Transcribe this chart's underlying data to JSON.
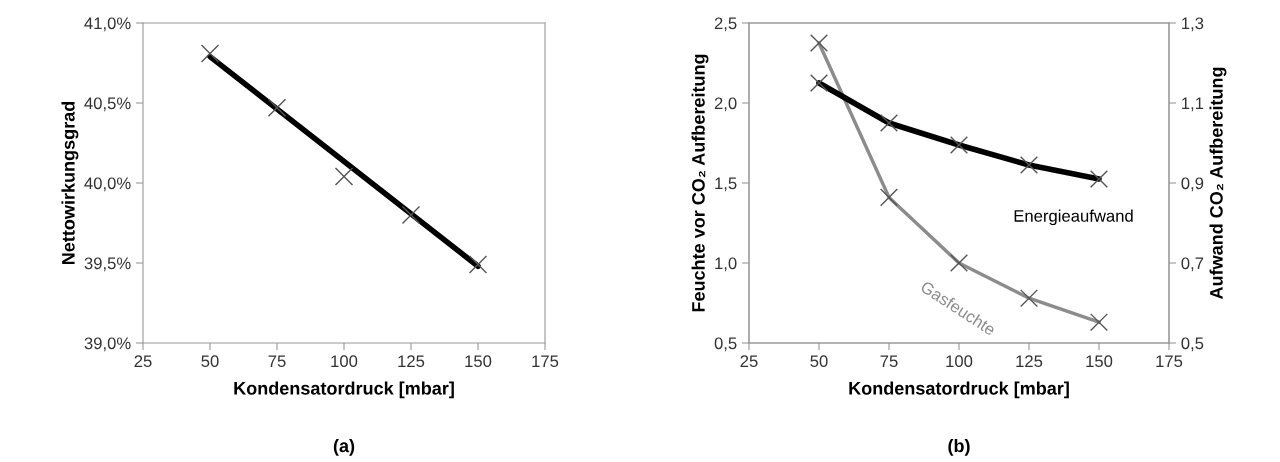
{
  "chart_data": [
    {
      "type": "scatter",
      "xlabel": "Kondensatordruck [mbar]",
      "ylabel": "Nettowirkungsgrad",
      "annotations": [
        "(a)"
      ],
      "x": [
        50,
        75,
        100,
        125,
        150
      ],
      "series": [
        {
          "type": "scatter",
          "color": "#555555",
          "marker": "cross",
          "values": [
            40.81,
            40.47,
            40.04,
            39.8,
            39.49
          ]
        },
        {
          "type": "line",
          "color": "#000000",
          "marker": "none",
          "x": [
            50,
            150
          ],
          "values": [
            40.79,
            39.48
          ]
        }
      ],
      "xlim": [
        25,
        175
      ],
      "xticks": [
        25,
        50,
        75,
        100,
        125,
        150,
        175
      ],
      "ylim": [
        39.0,
        41.0
      ],
      "yticks": [
        {
          "value": 39.0,
          "label": "39,0%"
        },
        {
          "value": 39.5,
          "label": "39,5%"
        },
        {
          "value": 40.0,
          "label": "40,0%"
        },
        {
          "value": 40.5,
          "label": "40,5%"
        },
        {
          "value": 41.0,
          "label": "41,0%"
        }
      ],
      "grid": false,
      "legend": false
    },
    {
      "type": "line",
      "xlabel": "Kondensatordruck [mbar]",
      "ylabel": "Feuchte vor CO₂ Aufbereitung",
      "y2label": "Aufwand CO₂ Aufbereitung",
      "annotations": [
        "(b)"
      ],
      "x": [
        50,
        75,
        100,
        125,
        150
      ],
      "marker": "cross",
      "series": [
        {
          "name": "Gasfeuchte",
          "color": "#8c8c8c",
          "values": [
            2.375,
            1.41,
            1.0,
            0.78,
            0.63
          ]
        },
        {
          "name": "Energieaufwand",
          "color": "#000000",
          "axis": "y2",
          "values": [
            1.15,
            1.05,
            0.995,
            0.945,
            0.91
          ]
        }
      ],
      "xlim": [
        25,
        175
      ],
      "xticks": [
        25,
        50,
        75,
        100,
        125,
        150,
        175
      ],
      "ylim": [
        0.5,
        2.5
      ],
      "yticks": [
        {
          "value": 0.5,
          "label": "0,5"
        },
        {
          "value": 1.0,
          "label": "1,0"
        },
        {
          "value": 1.5,
          "label": "1,5"
        },
        {
          "value": 2.0,
          "label": "2,0"
        },
        {
          "value": 2.5,
          "label": "2,5"
        }
      ],
      "y2lim": [
        0.5,
        1.3
      ],
      "y2ticks": [
        {
          "value": 0.5,
          "label": "0,5"
        },
        {
          "value": 0.7,
          "label": "0,7"
        },
        {
          "value": 0.9,
          "label": "0,9"
        },
        {
          "value": 1.1,
          "label": "1,1"
        },
        {
          "value": 1.3,
          "label": "1,3"
        }
      ],
      "grid": false,
      "legend": false
    }
  ]
}
